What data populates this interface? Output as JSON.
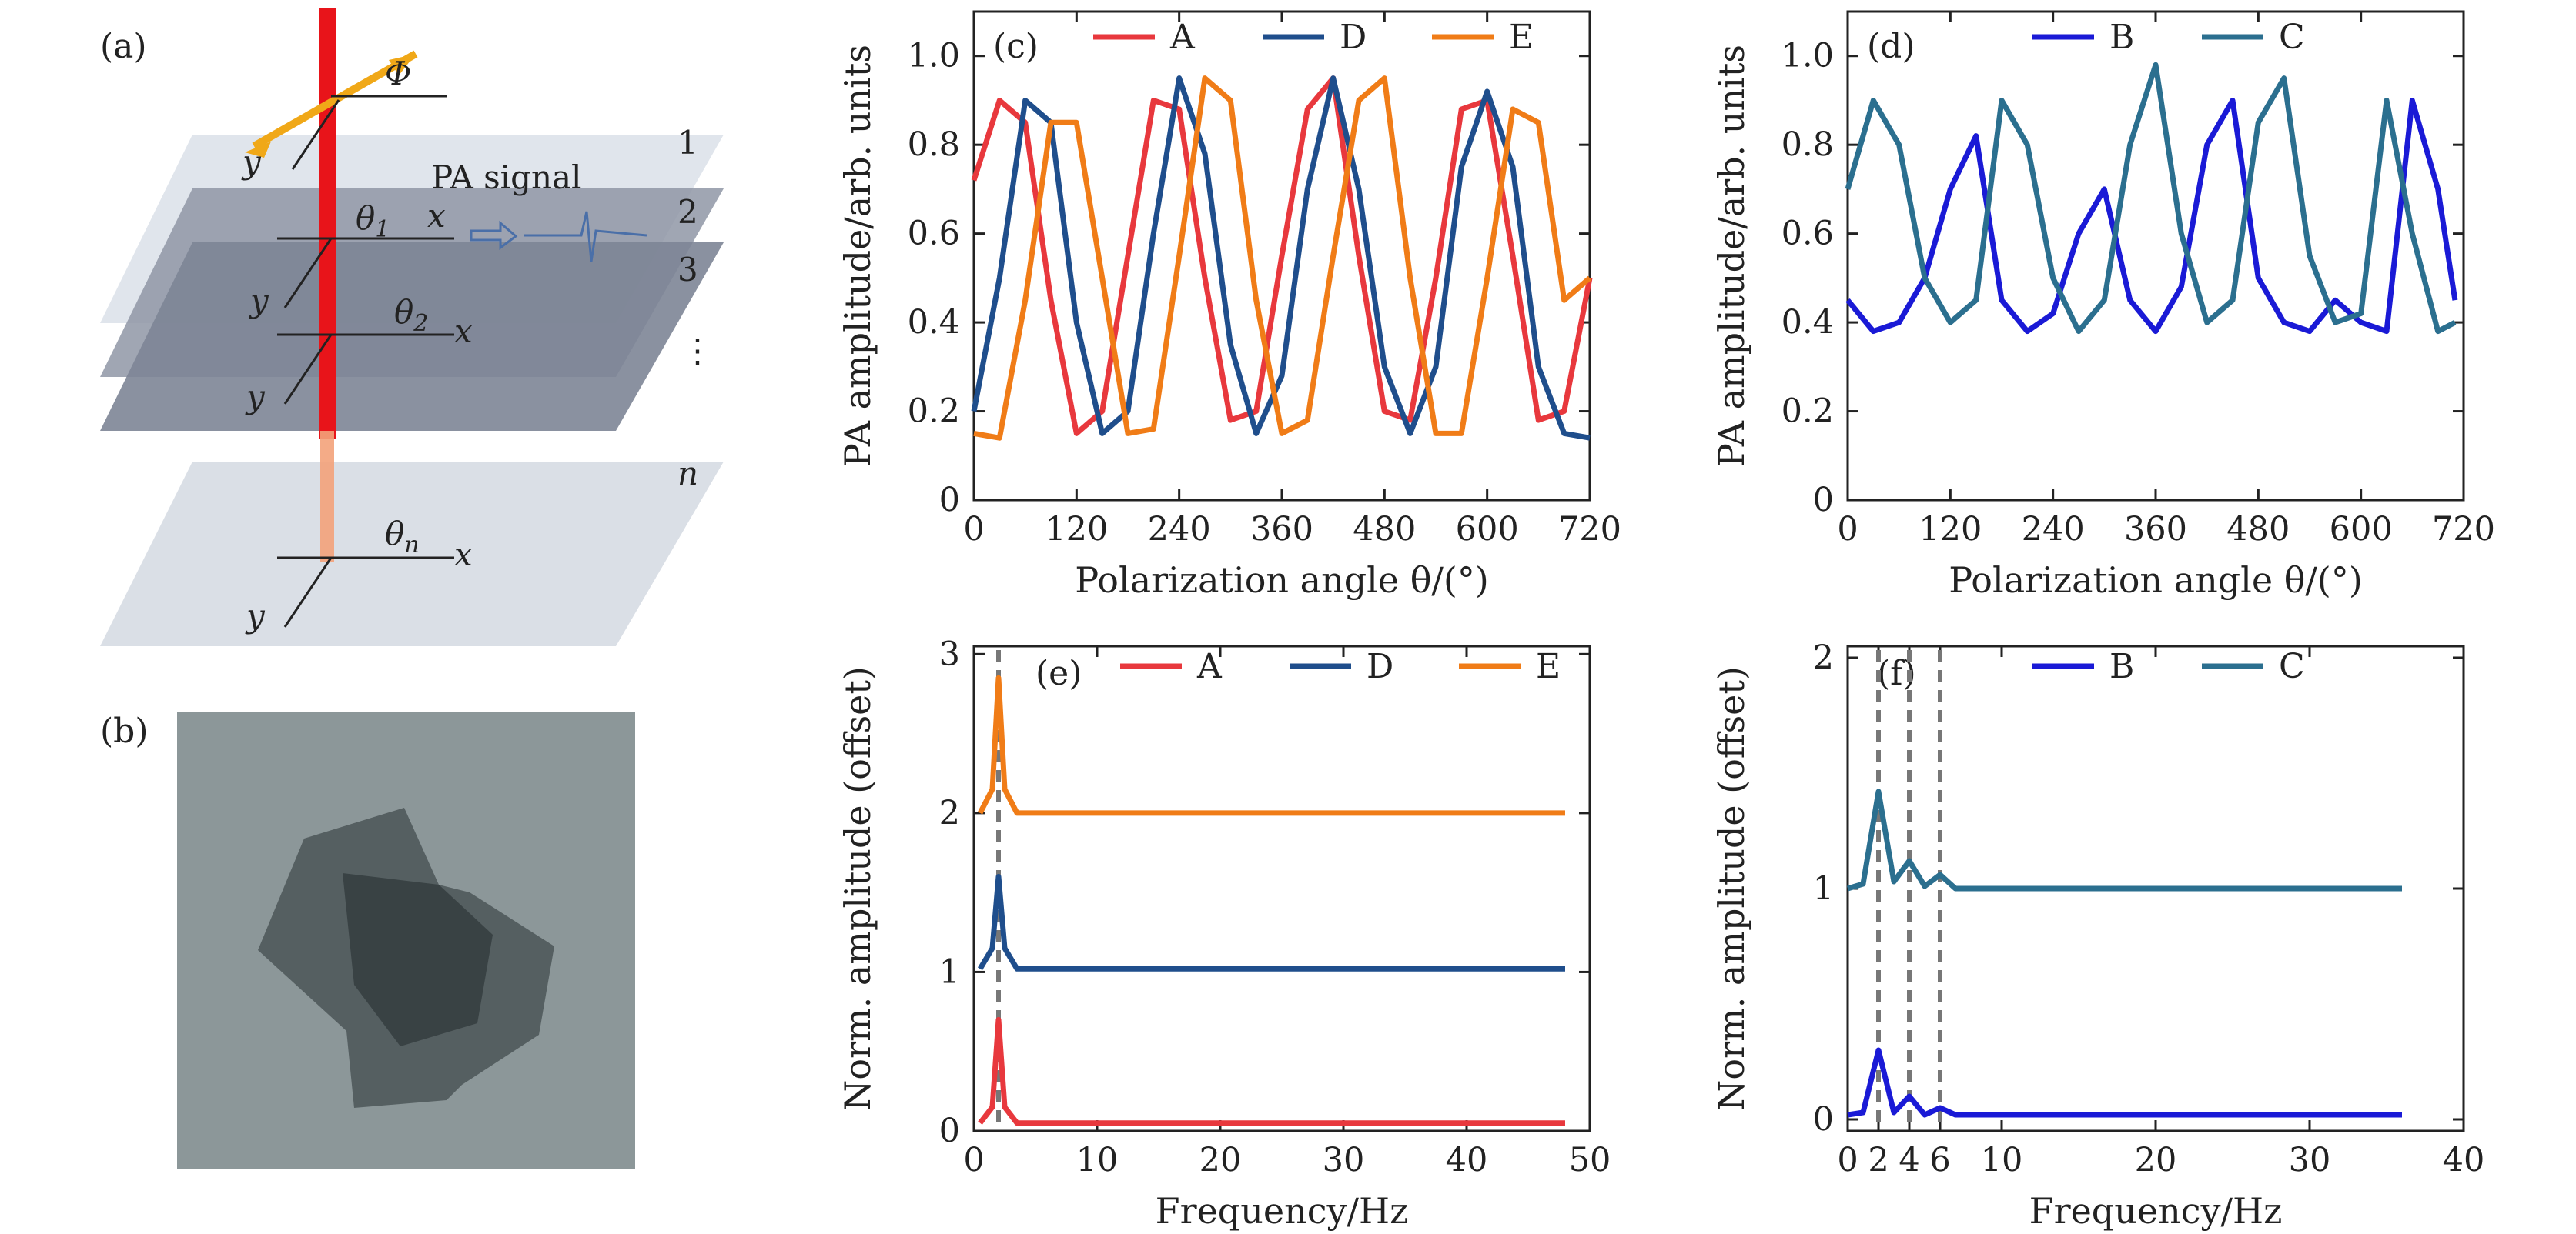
{
  "panel_labels": {
    "a": "(a)",
    "b": "(b)",
    "c": "(c)",
    "d": "(d)",
    "e": "(e)",
    "f": "(f)"
  },
  "diagram": {
    "pa_signal": "PA signal",
    "phi": "Φ",
    "layer_numbers": [
      "1",
      "2",
      "3",
      "⋮",
      "n"
    ],
    "axis_x": "x",
    "axis_y": "y",
    "theta_labels": [
      "θ",
      "θ",
      "θ"
    ],
    "theta_subs": [
      "1",
      "2",
      "n"
    ]
  },
  "colors": {
    "A": "#e8383d",
    "D": "#1f4e8c",
    "E": "#f07c17",
    "B": "#1a1ad6",
    "C": "#2b6f8f",
    "laser": "#e8141a",
    "polarization_arrow": "#f0a818",
    "plane_light": "#d0d6e0",
    "plane_dark": "#7d8596",
    "micrograph_bg": "#7e8a8d",
    "flake": "#3c4648"
  },
  "chart_data": [
    {
      "id": "c",
      "type": "line",
      "xlabel": "Polarization angle θ/(°)",
      "ylabel": "PA amplitude/arb. units",
      "xlim": [
        0,
        720
      ],
      "ylim": [
        0,
        1.1
      ],
      "xticks": [
        "0",
        "120",
        "240",
        "360",
        "480",
        "600",
        "720"
      ],
      "yticks": [
        "0",
        "0.2",
        "0.4",
        "0.6",
        "0.8",
        "1.0"
      ],
      "legend": [
        "A",
        "D",
        "E"
      ],
      "series": [
        {
          "name": "A",
          "x": [
            0,
            30,
            60,
            90,
            120,
            150,
            180,
            210,
            240,
            270,
            300,
            330,
            360,
            390,
            420,
            450,
            480,
            510,
            540,
            570,
            600,
            630,
            660,
            690,
            720
          ],
          "y": [
            0.72,
            0.9,
            0.85,
            0.45,
            0.15,
            0.2,
            0.55,
            0.9,
            0.88,
            0.5,
            0.18,
            0.2,
            0.55,
            0.88,
            0.95,
            0.55,
            0.2,
            0.18,
            0.5,
            0.88,
            0.9,
            0.55,
            0.18,
            0.2,
            0.5
          ]
        },
        {
          "name": "D",
          "x": [
            0,
            30,
            60,
            90,
            120,
            150,
            180,
            210,
            240,
            270,
            300,
            330,
            360,
            390,
            420,
            450,
            480,
            510,
            540,
            570,
            600,
            630,
            660,
            690,
            720
          ],
          "y": [
            0.2,
            0.5,
            0.9,
            0.85,
            0.4,
            0.15,
            0.2,
            0.6,
            0.95,
            0.78,
            0.35,
            0.15,
            0.28,
            0.7,
            0.95,
            0.7,
            0.3,
            0.15,
            0.3,
            0.75,
            0.92,
            0.75,
            0.3,
            0.15,
            0.14
          ]
        },
        {
          "name": "E",
          "x": [
            0,
            30,
            60,
            90,
            120,
            150,
            180,
            210,
            240,
            270,
            300,
            330,
            360,
            390,
            420,
            450,
            480,
            510,
            540,
            570,
            600,
            630,
            660,
            690,
            720
          ],
          "y": [
            0.15,
            0.14,
            0.45,
            0.85,
            0.85,
            0.5,
            0.15,
            0.16,
            0.55,
            0.95,
            0.9,
            0.45,
            0.15,
            0.18,
            0.55,
            0.9,
            0.95,
            0.5,
            0.15,
            0.15,
            0.5,
            0.88,
            0.85,
            0.45,
            0.5
          ]
        }
      ]
    },
    {
      "id": "d",
      "type": "line",
      "xlabel": "Polarization angle θ/(°)",
      "ylabel": "PA amplitude/arb. units",
      "xlim": [
        0,
        720
      ],
      "ylim": [
        0,
        1.1
      ],
      "xticks": [
        "0",
        "120",
        "240",
        "360",
        "480",
        "600",
        "720"
      ],
      "yticks": [
        "0",
        "0.2",
        "0.4",
        "0.6",
        "0.8",
        "1.0"
      ],
      "legend": [
        "B",
        "C"
      ],
      "series": [
        {
          "name": "B",
          "x": [
            0,
            30,
            60,
            90,
            120,
            150,
            180,
            210,
            240,
            270,
            300,
            330,
            360,
            390,
            420,
            450,
            480,
            510,
            540,
            570,
            600,
            630,
            660,
            690,
            710
          ],
          "y": [
            0.45,
            0.38,
            0.4,
            0.5,
            0.7,
            0.82,
            0.45,
            0.38,
            0.42,
            0.6,
            0.7,
            0.45,
            0.38,
            0.48,
            0.8,
            0.9,
            0.5,
            0.4,
            0.38,
            0.45,
            0.4,
            0.38,
            0.9,
            0.7,
            0.45
          ]
        },
        {
          "name": "C",
          "x": [
            0,
            30,
            60,
            90,
            120,
            150,
            180,
            210,
            240,
            270,
            300,
            330,
            360,
            390,
            420,
            450,
            480,
            510,
            540,
            570,
            600,
            630,
            660,
            690,
            710
          ],
          "y": [
            0.7,
            0.9,
            0.8,
            0.5,
            0.4,
            0.45,
            0.9,
            0.8,
            0.5,
            0.38,
            0.45,
            0.8,
            0.98,
            0.6,
            0.4,
            0.45,
            0.85,
            0.95,
            0.55,
            0.4,
            0.42,
            0.9,
            0.6,
            0.38,
            0.4
          ]
        }
      ]
    },
    {
      "id": "e",
      "type": "line",
      "xlabel": "Frequency/Hz",
      "ylabel": "Norm. amplitude (offset)",
      "xlim": [
        0,
        50
      ],
      "ylim": [
        0,
        3.05
      ],
      "xticks": [
        "0",
        "10",
        "20",
        "30",
        "40",
        "50"
      ],
      "yticks": [
        "0",
        "1",
        "2",
        "3"
      ],
      "legend": [
        "A",
        "D",
        "E"
      ],
      "markers": [
        2
      ],
      "series": [
        {
          "name": "A",
          "offset": 0,
          "x": [
            0.5,
            1.5,
            2,
            2.5,
            3.5,
            48
          ],
          "y": [
            0.05,
            0.15,
            0.7,
            0.15,
            0.05,
            0.05
          ]
        },
        {
          "name": "D",
          "offset": 1,
          "x": [
            0.5,
            1.5,
            2,
            2.5,
            3.5,
            48
          ],
          "y": [
            1.02,
            1.15,
            1.6,
            1.15,
            1.02,
            1.02
          ]
        },
        {
          "name": "E",
          "offset": 2,
          "x": [
            0.5,
            1.5,
            2,
            2.5,
            3.5,
            48
          ],
          "y": [
            2.0,
            2.15,
            2.85,
            2.15,
            2.0,
            2.0
          ]
        }
      ]
    },
    {
      "id": "f",
      "type": "line",
      "xlabel": "Frequency/Hz",
      "ylabel": "Norm. amplitude (offset)",
      "xlim": [
        0,
        40
      ],
      "ylim": [
        -0.05,
        2.05
      ],
      "xticks": [
        "0",
        "2",
        "4",
        "6",
        "10",
        "20",
        "30",
        "40"
      ],
      "xtick_values": [
        0,
        2,
        4,
        6,
        10,
        20,
        30,
        40
      ],
      "yticks": [
        "0",
        "1",
        "2"
      ],
      "legend": [
        "B",
        "C"
      ],
      "markers": [
        2,
        4,
        6
      ],
      "series": [
        {
          "name": "B",
          "offset": 0,
          "x": [
            0,
            1,
            2,
            3,
            4,
            5,
            6,
            7,
            36
          ],
          "y": [
            0.02,
            0.03,
            0.3,
            0.03,
            0.1,
            0.02,
            0.05,
            0.02,
            0.02
          ]
        },
        {
          "name": "C",
          "offset": 1,
          "x": [
            0,
            1,
            2,
            3,
            4,
            5,
            6,
            7,
            36
          ],
          "y": [
            1.0,
            1.02,
            1.42,
            1.03,
            1.12,
            1.01,
            1.06,
            1.0,
            1.0
          ]
        }
      ]
    }
  ]
}
